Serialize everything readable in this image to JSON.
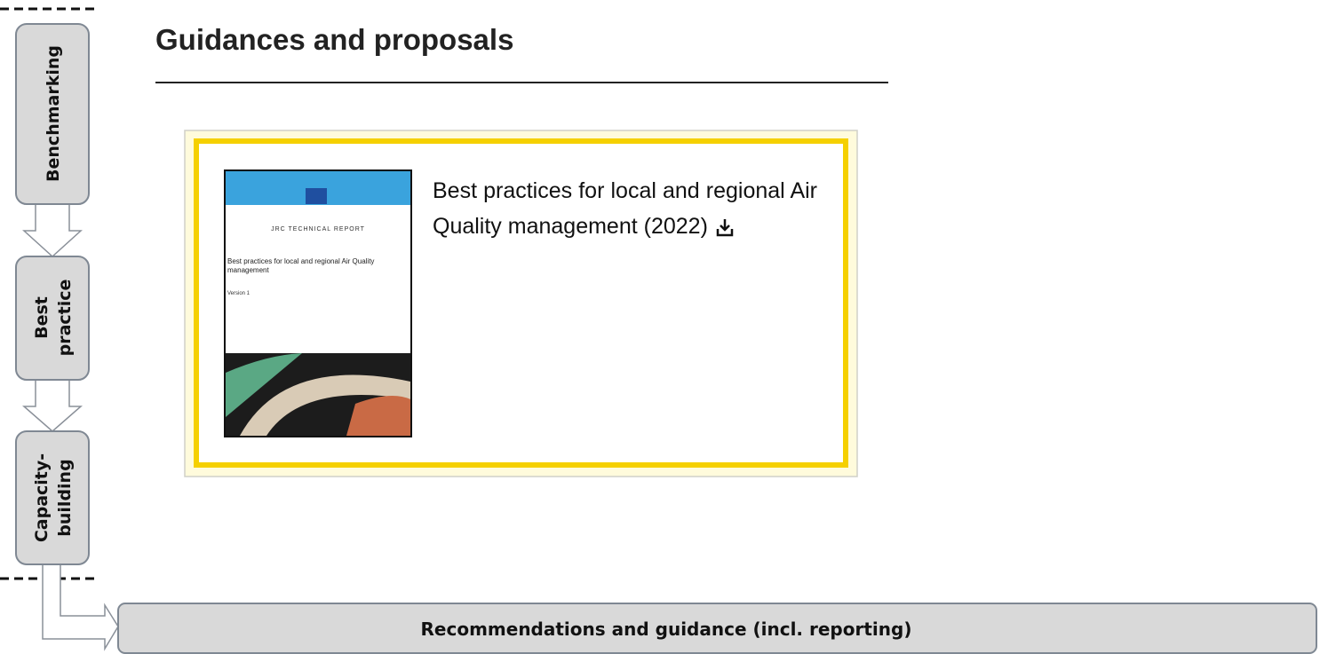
{
  "sidebar": {
    "steps": [
      {
        "label": [
          "Benchmarking"
        ]
      },
      {
        "label": [
          "Best",
          "practice"
        ]
      },
      {
        "label": [
          "Capacity-",
          "building"
        ]
      }
    ]
  },
  "header": {
    "title": "Guidances and proposals"
  },
  "card": {
    "cover": {
      "series": "JRC TECHNICAL REPORT",
      "title": "Best practices for local and regional Air Quality management",
      "version": "Version 1"
    },
    "text": "Best practices for local and regional Air Quality management (2022)"
  },
  "footer": {
    "label": "Recommendations and guidance (incl. reporting)"
  }
}
